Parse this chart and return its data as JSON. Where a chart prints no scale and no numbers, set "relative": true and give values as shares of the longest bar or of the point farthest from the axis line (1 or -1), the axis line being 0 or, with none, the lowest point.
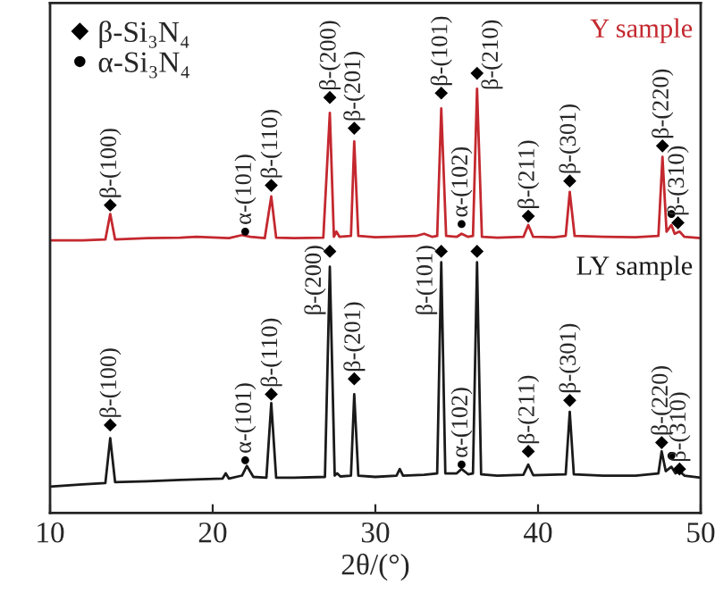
{
  "chart_data": {
    "type": "line",
    "relative": true,
    "xlabel": "2θ/(°)",
    "xlim": [
      10,
      50
    ],
    "xticks": [
      10,
      20,
      30,
      40,
      50
    ],
    "tick_labels": "x",
    "grid": false,
    "legend": "top left",
    "series": [
      {
        "name": "Y sample",
        "color": "#c4282f",
        "x": [
          10,
          12,
          13.4,
          13.7,
          14.0,
          16,
          18,
          19,
          21,
          21.8,
          22.3,
          23.2,
          23.6,
          23.9,
          25,
          26.8,
          27.2,
          27.45,
          27.6,
          27.8,
          28.5,
          28.7,
          28.95,
          30,
          31,
          32.5,
          33.0,
          33.5,
          33.8,
          34.05,
          34.35,
          35.0,
          35.3,
          35.7,
          36.0,
          36.25,
          36.55,
          37.5,
          39.1,
          39.4,
          39.7,
          41.0,
          41.7,
          41.95,
          42.25,
          44,
          46,
          47.4,
          47.65,
          47.9,
          48.2,
          48.4,
          48.7,
          49,
          50
        ],
        "values": [
          0.62,
          0.62,
          0.622,
          0.68,
          0.622,
          0.625,
          0.626,
          0.628,
          0.625,
          0.632,
          0.628,
          0.625,
          0.72,
          0.626,
          0.625,
          0.626,
          0.91,
          0.628,
          0.64,
          0.628,
          0.63,
          0.845,
          0.63,
          0.627,
          0.628,
          0.63,
          0.635,
          0.628,
          0.63,
          0.92,
          0.63,
          0.628,
          0.635,
          0.628,
          0.63,
          0.965,
          0.628,
          0.626,
          0.628,
          0.655,
          0.628,
          0.627,
          0.63,
          0.73,
          0.63,
          0.628,
          0.627,
          0.63,
          0.81,
          0.64,
          0.655,
          0.635,
          0.64,
          0.628,
          0.625
        ]
      },
      {
        "name": "LY sample",
        "color": "#1a1a1a",
        "x": [
          10,
          12,
          13.4,
          13.7,
          14.0,
          16,
          18,
          20.6,
          20.8,
          21,
          21.8,
          22.1,
          22.5,
          23.3,
          23.6,
          23.9,
          25,
          26.9,
          27.2,
          27.5,
          27.65,
          27.85,
          28.5,
          28.7,
          28.95,
          30,
          31.3,
          31.5,
          31.7,
          33.0,
          33.8,
          34.05,
          34.3,
          35.0,
          35.3,
          35.7,
          36.0,
          36.25,
          36.5,
          37.5,
          39.1,
          39.4,
          39.7,
          41.7,
          41.95,
          42.2,
          44,
          46,
          47.4,
          47.6,
          47.85,
          48.2,
          48.45,
          48.7,
          49,
          50
        ],
        "values": [
          0.06,
          0.065,
          0.068,
          0.17,
          0.07,
          0.072,
          0.075,
          0.078,
          0.09,
          0.078,
          0.085,
          0.107,
          0.082,
          0.08,
          0.25,
          0.08,
          0.08,
          0.082,
          0.56,
          0.085,
          0.09,
          0.083,
          0.085,
          0.27,
          0.085,
          0.082,
          0.085,
          0.1,
          0.085,
          0.087,
          0.09,
          0.57,
          0.09,
          0.09,
          0.1,
          0.088,
          0.09,
          0.57,
          0.088,
          0.085,
          0.087,
          0.11,
          0.086,
          0.088,
          0.23,
          0.088,
          0.085,
          0.085,
          0.09,
          0.14,
          0.095,
          0.105,
          0.09,
          0.095,
          0.085,
          0.08
        ]
      },
      {
        "type": "scatter",
        "name": "β-Si₃N₄",
        "color": "#000000",
        "marker": "diamond",
        "x": [
          13.7,
          23.6,
          27.2,
          28.7,
          34.05,
          36.25,
          39.4,
          41.95,
          47.65,
          48.6,
          13.7,
          23.6,
          27.2,
          28.7,
          34.05,
          36.25,
          39.4,
          41.95,
          47.6,
          48.7
        ],
        "values": [
          0.7,
          0.745,
          0.945,
          0.875,
          0.955,
          1.0,
          0.675,
          0.755,
          0.835,
          0.66,
          0.2,
          0.27,
          0.595,
          0.305,
          0.595,
          0.595,
          0.14,
          0.256,
          0.16,
          0.1
        ]
      },
      {
        "type": "scatter",
        "name": "α-Si₃N₄",
        "color": "#000000",
        "marker": "circle",
        "x": [
          22.0,
          35.3,
          48.2,
          22.0,
          35.3,
          48.2
        ],
        "values": [
          0.64,
          0.657,
          0.68,
          0.12,
          0.11,
          0.13
        ]
      }
    ],
    "annotations": [
      {
        "text": "β-(100)",
        "x": 13.7,
        "y": 0.7
      },
      {
        "text": "α-(101)",
        "x": 22.0,
        "y": 0.64
      },
      {
        "text": "β-(110)",
        "x": 23.6,
        "y": 0.745
      },
      {
        "text": "β-(200)",
        "x": 27.2,
        "y": 0.945
      },
      {
        "text": "β-(201)",
        "x": 28.7,
        "y": 0.875
      },
      {
        "text": "β-(101)",
        "x": 34.05,
        "y": 0.955
      },
      {
        "text": "α-(102)",
        "x": 35.3,
        "y": 0.657
      },
      {
        "text": "β-(210)",
        "x": 36.25,
        "y": 1.0
      },
      {
        "text": "β-(211)",
        "x": 39.4,
        "y": 0.675
      },
      {
        "text": "β-(301)",
        "x": 41.95,
        "y": 0.755
      },
      {
        "text": "β-(220)",
        "x": 47.65,
        "y": 0.835
      },
      {
        "text": "β-(310)",
        "x": 48.6,
        "y": 0.66
      },
      {
        "text": "β-(100)",
        "x": 13.7,
        "y": 0.2
      },
      {
        "text": "α-(101)",
        "x": 22.0,
        "y": 0.12
      },
      {
        "text": "β-(110)",
        "x": 23.6,
        "y": 0.27
      },
      {
        "text": "β-(200)",
        "x": 27.2,
        "y": 0.595
      },
      {
        "text": "β-(201)",
        "x": 28.7,
        "y": 0.305
      },
      {
        "text": "β-(101)",
        "x": 34.05,
        "y": 0.595
      },
      {
        "text": "α-(102)",
        "x": 35.3,
        "y": 0.11
      },
      {
        "text": "β-(211)",
        "x": 39.4,
        "y": 0.14
      },
      {
        "text": "β-(301)",
        "x": 41.95,
        "y": 0.256
      },
      {
        "text": "β-(220)",
        "x": 47.6,
        "y": 0.16
      },
      {
        "text": "β-(310)",
        "x": 48.7,
        "y": 0.1
      }
    ]
  }
}
